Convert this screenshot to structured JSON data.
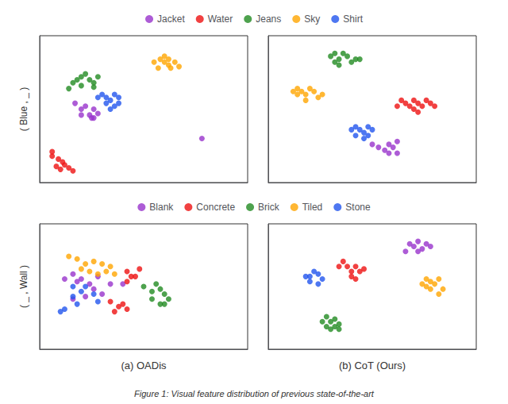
{
  "chart_data": [
    {
      "type": "scatter",
      "ylabel": "( Blue , _ )",
      "xlim": [
        0,
        1
      ],
      "ylim": [
        0,
        1
      ],
      "tick_labels": false,
      "grid": false,
      "legend": "top",
      "series": [
        {
          "name": "Jacket",
          "color": "#9933CC",
          "values": [
            [
              0.17,
              0.54
            ],
            [
              0.2,
              0.5
            ],
            [
              0.22,
              0.52
            ],
            [
              0.2,
              0.46
            ],
            [
              0.24,
              0.46
            ],
            [
              0.26,
              0.44
            ],
            [
              0.28,
              0.47
            ],
            [
              0.26,
              0.5
            ],
            [
              0.25,
              0.44
            ],
            [
              0.78,
              0.3
            ]
          ]
        },
        {
          "name": "Water",
          "color": "#EE1111",
          "values": [
            [
              0.06,
              0.18
            ],
            [
              0.09,
              0.16
            ],
            [
              0.11,
              0.14
            ],
            [
              0.08,
              0.11
            ],
            [
              0.1,
              0.09
            ],
            [
              0.12,
              0.12
            ],
            [
              0.14,
              0.1
            ],
            [
              0.06,
              0.21
            ],
            [
              0.16,
              0.08
            ]
          ]
        },
        {
          "name": "Jeans",
          "color": "#228B22",
          "values": [
            [
              0.18,
              0.7
            ],
            [
              0.2,
              0.72
            ],
            [
              0.22,
              0.74
            ],
            [
              0.24,
              0.7
            ],
            [
              0.26,
              0.68
            ],
            [
              0.28,
              0.72
            ],
            [
              0.2,
              0.66
            ],
            [
              0.16,
              0.68
            ],
            [
              0.14,
              0.64
            ],
            [
              0.26,
              0.65
            ]
          ]
        },
        {
          "name": "Sky",
          "color": "#FFA500",
          "values": [
            [
              0.55,
              0.82
            ],
            [
              0.58,
              0.84
            ],
            [
              0.6,
              0.82
            ],
            [
              0.62,
              0.8
            ],
            [
              0.62,
              0.84
            ],
            [
              0.6,
              0.86
            ],
            [
              0.57,
              0.78
            ],
            [
              0.65,
              0.82
            ],
            [
              0.67,
              0.79
            ],
            [
              0.63,
              0.78
            ]
          ]
        },
        {
          "name": "Shirt",
          "color": "#2255EE",
          "values": [
            [
              0.28,
              0.58
            ],
            [
              0.3,
              0.6
            ],
            [
              0.32,
              0.58
            ],
            [
              0.34,
              0.56
            ],
            [
              0.36,
              0.6
            ],
            [
              0.38,
              0.58
            ],
            [
              0.38,
              0.54
            ],
            [
              0.36,
              0.52
            ],
            [
              0.32,
              0.54
            ],
            [
              0.34,
              0.5
            ]
          ]
        }
      ]
    },
    {
      "type": "scatter",
      "xlim": [
        0,
        1
      ],
      "ylim": [
        0,
        1
      ],
      "tick_labels": false,
      "grid": false,
      "series": [
        {
          "name": "Jacket",
          "color": "#9933CC",
          "values": [
            [
              0.5,
              0.26
            ],
            [
              0.53,
              0.24
            ],
            [
              0.56,
              0.22
            ],
            [
              0.58,
              0.26
            ],
            [
              0.6,
              0.24
            ],
            [
              0.62,
              0.2
            ],
            [
              0.58,
              0.2
            ],
            [
              0.62,
              0.28
            ]
          ]
        },
        {
          "name": "Water",
          "color": "#EE1111",
          "values": [
            [
              0.62,
              0.52
            ],
            [
              0.64,
              0.56
            ],
            [
              0.66,
              0.54
            ],
            [
              0.68,
              0.52
            ],
            [
              0.7,
              0.56
            ],
            [
              0.72,
              0.54
            ],
            [
              0.74,
              0.52
            ],
            [
              0.76,
              0.56
            ],
            [
              0.78,
              0.54
            ],
            [
              0.7,
              0.5
            ],
            [
              0.72,
              0.48
            ],
            [
              0.8,
              0.52
            ]
          ]
        },
        {
          "name": "Jeans",
          "color": "#228B22",
          "values": [
            [
              0.3,
              0.86
            ],
            [
              0.32,
              0.88
            ],
            [
              0.34,
              0.84
            ],
            [
              0.36,
              0.88
            ],
            [
              0.38,
              0.86
            ],
            [
              0.4,
              0.82
            ],
            [
              0.42,
              0.84
            ],
            [
              0.32,
              0.82
            ],
            [
              0.34,
              0.8
            ],
            [
              0.44,
              0.84
            ]
          ]
        },
        {
          "name": "Sky",
          "color": "#FFA500",
          "values": [
            [
              0.12,
              0.62
            ],
            [
              0.14,
              0.64
            ],
            [
              0.16,
              0.62
            ],
            [
              0.18,
              0.6
            ],
            [
              0.2,
              0.64
            ],
            [
              0.22,
              0.62
            ],
            [
              0.14,
              0.6
            ],
            [
              0.24,
              0.58
            ],
            [
              0.18,
              0.56
            ],
            [
              0.26,
              0.6
            ]
          ]
        },
        {
          "name": "Shirt",
          "color": "#2255EE",
          "values": [
            [
              0.4,
              0.36
            ],
            [
              0.42,
              0.38
            ],
            [
              0.44,
              0.36
            ],
            [
              0.46,
              0.34
            ],
            [
              0.48,
              0.38
            ],
            [
              0.5,
              0.36
            ],
            [
              0.42,
              0.32
            ],
            [
              0.46,
              0.3
            ],
            [
              0.48,
              0.32
            ]
          ]
        }
      ]
    },
    {
      "type": "scatter",
      "ylabel": "( _ , Wall )",
      "xlabel": "(a) OADis",
      "xlim": [
        0,
        1
      ],
      "ylim": [
        0,
        1
      ],
      "tick_labels": false,
      "grid": false,
      "legend": "top",
      "series": [
        {
          "name": "Blank",
          "color": "#9933CC",
          "values": [
            [
              0.16,
              0.6
            ],
            [
              0.2,
              0.56
            ],
            [
              0.24,
              0.52
            ],
            [
              0.28,
              0.58
            ],
            [
              0.26,
              0.48
            ],
            [
              0.3,
              0.44
            ],
            [
              0.18,
              0.54
            ],
            [
              0.12,
              0.56
            ],
            [
              0.22,
              0.42
            ],
            [
              0.16,
              0.4
            ],
            [
              0.34,
              0.52
            ],
            [
              0.4,
              0.52
            ]
          ]
        },
        {
          "name": "Concrete",
          "color": "#EE1111",
          "values": [
            [
              0.42,
              0.62
            ],
            [
              0.46,
              0.58
            ],
            [
              0.48,
              0.64
            ],
            [
              0.42,
              0.54
            ],
            [
              0.34,
              0.38
            ],
            [
              0.38,
              0.34
            ],
            [
              0.36,
              0.3
            ],
            [
              0.4,
              0.36
            ],
            [
              0.42,
              0.32
            ],
            [
              0.44,
              0.58
            ]
          ]
        },
        {
          "name": "Brick",
          "color": "#228B22",
          "values": [
            [
              0.5,
              0.5
            ],
            [
              0.54,
              0.46
            ],
            [
              0.56,
              0.52
            ],
            [
              0.58,
              0.48
            ],
            [
              0.6,
              0.44
            ],
            [
              0.54,
              0.4
            ],
            [
              0.58,
              0.36
            ],
            [
              0.62,
              0.4
            ],
            [
              0.6,
              0.36
            ]
          ]
        },
        {
          "name": "Tiled",
          "color": "#FFA500",
          "values": [
            [
              0.14,
              0.74
            ],
            [
              0.18,
              0.72
            ],
            [
              0.22,
              0.68
            ],
            [
              0.26,
              0.7
            ],
            [
              0.3,
              0.68
            ],
            [
              0.34,
              0.66
            ],
            [
              0.2,
              0.64
            ],
            [
              0.24,
              0.62
            ],
            [
              0.28,
              0.6
            ],
            [
              0.32,
              0.62
            ],
            [
              0.36,
              0.6
            ]
          ]
        },
        {
          "name": "Stone",
          "color": "#2255EE",
          "values": [
            [
              0.22,
              0.5
            ],
            [
              0.26,
              0.44
            ],
            [
              0.2,
              0.46
            ],
            [
              0.16,
              0.5
            ],
            [
              0.28,
              0.38
            ],
            [
              0.12,
              0.32
            ],
            [
              0.18,
              0.36
            ],
            [
              0.16,
              0.42
            ],
            [
              0.1,
              0.3
            ]
          ]
        }
      ]
    },
    {
      "type": "scatter",
      "xlabel": "(b) CoT (Ours)",
      "xlim": [
        0,
        1
      ],
      "ylim": [
        0,
        1
      ],
      "tick_labels": false,
      "grid": false,
      "annotations": [
        {
          "text": "Figure 1: Visual feature distribution of previous state-of-the-art"
        }
      ],
      "series": [
        {
          "name": "Blank",
          "color": "#9933CC",
          "values": [
            [
              0.68,
              0.84
            ],
            [
              0.72,
              0.86
            ],
            [
              0.76,
              0.84
            ],
            [
              0.74,
              0.8
            ],
            [
              0.7,
              0.82
            ],
            [
              0.78,
              0.82
            ],
            [
              0.66,
              0.78
            ],
            [
              0.72,
              0.78
            ]
          ]
        },
        {
          "name": "Concrete",
          "color": "#EE1111",
          "values": [
            [
              0.34,
              0.66
            ],
            [
              0.36,
              0.7
            ],
            [
              0.38,
              0.66
            ],
            [
              0.4,
              0.62
            ],
            [
              0.42,
              0.66
            ],
            [
              0.44,
              0.62
            ],
            [
              0.4,
              0.58
            ],
            [
              0.42,
              0.56
            ],
            [
              0.46,
              0.64
            ]
          ]
        },
        {
          "name": "Brick",
          "color": "#228B22",
          "values": [
            [
              0.28,
              0.26
            ],
            [
              0.3,
              0.22
            ],
            [
              0.32,
              0.24
            ],
            [
              0.34,
              0.2
            ],
            [
              0.32,
              0.18
            ],
            [
              0.3,
              0.16
            ],
            [
              0.28,
              0.18
            ],
            [
              0.26,
              0.22
            ],
            [
              0.34,
              0.16
            ]
          ]
        },
        {
          "name": "Tiled",
          "color": "#FFA500",
          "values": [
            [
              0.74,
              0.52
            ],
            [
              0.76,
              0.56
            ],
            [
              0.78,
              0.54
            ],
            [
              0.8,
              0.52
            ],
            [
              0.82,
              0.56
            ],
            [
              0.76,
              0.5
            ],
            [
              0.78,
              0.48
            ],
            [
              0.82,
              0.44
            ],
            [
              0.84,
              0.48
            ]
          ]
        },
        {
          "name": "Stone",
          "color": "#2255EE",
          "values": [
            [
              0.2,
              0.58
            ],
            [
              0.22,
              0.62
            ],
            [
              0.24,
              0.6
            ],
            [
              0.2,
              0.54
            ],
            [
              0.26,
              0.56
            ],
            [
              0.18,
              0.58
            ],
            [
              0.24,
              0.52
            ]
          ]
        }
      ]
    }
  ]
}
